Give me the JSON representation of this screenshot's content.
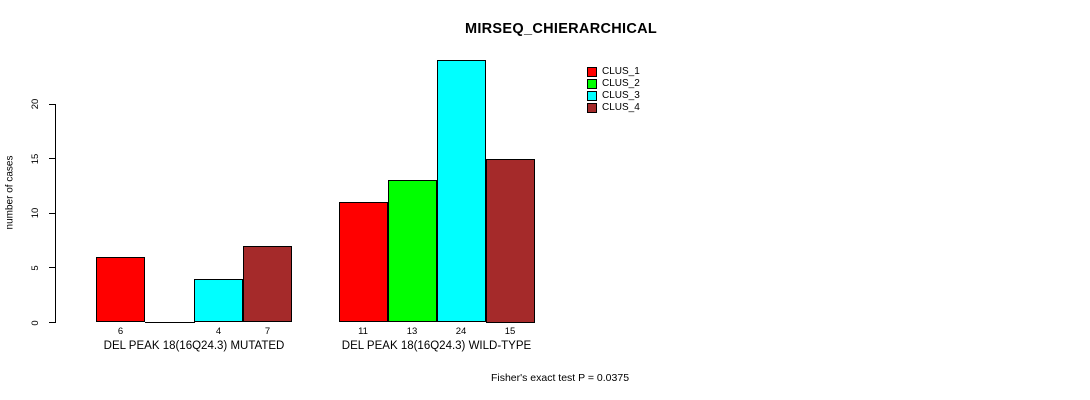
{
  "chart_data": {
    "type": "bar",
    "title": "MIRSEQ_CHIERARCHICAL",
    "ylabel": "number of cases",
    "xlabel": "",
    "categories": [
      "DEL PEAK 18(16Q24.3) MUTATED",
      "DEL PEAK 18(16Q24.3) WILD-TYPE"
    ],
    "series": [
      {
        "name": "CLUS_1",
        "color": "#ff0000",
        "values": [
          6,
          11
        ]
      },
      {
        "name": "CLUS_2",
        "color": "#00ff00",
        "values": [
          0,
          13
        ]
      },
      {
        "name": "CLUS_3",
        "color": "#00ffff",
        "values": [
          4,
          24
        ]
      },
      {
        "name": "CLUS_4",
        "color": "#a52a2a",
        "values": [
          7,
          15
        ]
      }
    ],
    "yticks": [
      0,
      5,
      10,
      15,
      20
    ],
    "ylim": [
      0,
      24
    ],
    "grid": false,
    "legend_position": "top-right",
    "value_labels_under_bars": true,
    "zero_bars_drawn_as_baseline_segment": true,
    "annotation": "Fisher's exact test P = 0.0375"
  },
  "colors": {
    "background": "#ffffff",
    "axis": "#000000",
    "text": "#000000",
    "bar_border": "#000000"
  }
}
